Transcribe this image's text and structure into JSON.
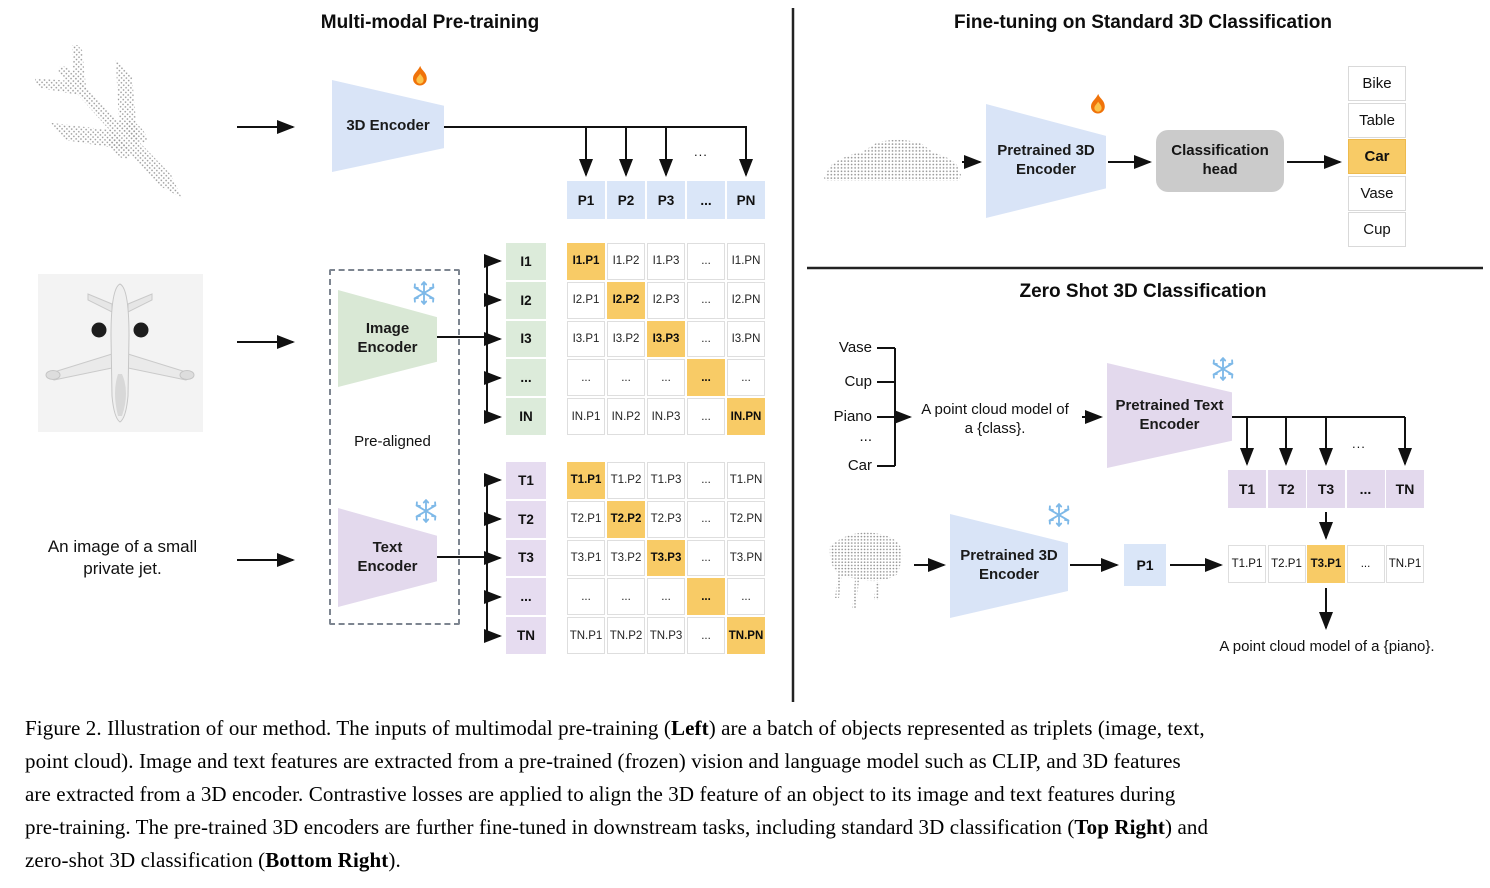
{
  "colors": {
    "encoder_blue": "#D9E4F7",
    "encoder_green": "#D9E8D5",
    "encoder_purple": "#E3D9ED",
    "highlight_orange": "#F8CB66",
    "head_gray": "#CBCBCB"
  },
  "icons": {
    "trainable": "fire-icon",
    "frozen": "snowflake-icon"
  },
  "panels": {
    "pretraining": {
      "title": "Multi-modal Pre-training",
      "encoder_3d": {
        "label": "3D Encoder",
        "icon": "fire-icon"
      },
      "drops_ellipsis": "...",
      "p_row": [
        "P1",
        "P2",
        "P3",
        "...",
        "PN"
      ],
      "image_encoder": {
        "label": "Image Encoder",
        "icon": "snowflake-icon"
      },
      "text_encoder": {
        "label": "Text Encoder",
        "icon": "snowflake-icon"
      },
      "prealigned_label": "Pre-aligned",
      "image_caption": {
        "line1": "An image of a small",
        "line2": "private jet."
      },
      "i_labels": [
        "I1",
        "I2",
        "I3",
        "...",
        "IN"
      ],
      "i_matrix": [
        [
          {
            "t": "I1.P1",
            "hl": true
          },
          {
            "t": "I1.P2"
          },
          {
            "t": "I1.P3"
          },
          {
            "t": "..."
          },
          {
            "t": "I1.PN"
          }
        ],
        [
          {
            "t": "I2.P1"
          },
          {
            "t": "I2.P2",
            "hl": true
          },
          {
            "t": "I2.P3"
          },
          {
            "t": "..."
          },
          {
            "t": "I2.PN"
          }
        ],
        [
          {
            "t": "I3.P1"
          },
          {
            "t": "I3.P2"
          },
          {
            "t": "I3.P3",
            "hl": true
          },
          {
            "t": "..."
          },
          {
            "t": "I3.PN"
          }
        ],
        [
          {
            "t": "..."
          },
          {
            "t": "..."
          },
          {
            "t": "..."
          },
          {
            "t": "...",
            "hl": true
          },
          {
            "t": "..."
          }
        ],
        [
          {
            "t": "IN.P1"
          },
          {
            "t": "IN.P2"
          },
          {
            "t": "IN.P3"
          },
          {
            "t": "..."
          },
          {
            "t": "IN.PN",
            "hl": true
          }
        ]
      ],
      "t_labels": [
        "T1",
        "T2",
        "T3",
        "...",
        "TN"
      ],
      "t_matrix": [
        [
          {
            "t": "T1.P1",
            "hl": true
          },
          {
            "t": "T1.P2"
          },
          {
            "t": "T1.P3"
          },
          {
            "t": "..."
          },
          {
            "t": "T1.PN"
          }
        ],
        [
          {
            "t": "T2.P1"
          },
          {
            "t": "T2.P2",
            "hl": true
          },
          {
            "t": "T2.P3"
          },
          {
            "t": "..."
          },
          {
            "t": "T2.PN"
          }
        ],
        [
          {
            "t": "T3.P1"
          },
          {
            "t": "T3.P2"
          },
          {
            "t": "T3.P3",
            "hl": true
          },
          {
            "t": "..."
          },
          {
            "t": "T3.PN"
          }
        ],
        [
          {
            "t": "..."
          },
          {
            "t": "..."
          },
          {
            "t": "..."
          },
          {
            "t": "...",
            "hl": true
          },
          {
            "t": "..."
          }
        ],
        [
          {
            "t": "TN.P1"
          },
          {
            "t": "TN.P2"
          },
          {
            "t": "TN.P3"
          },
          {
            "t": "..."
          },
          {
            "t": "TN.PN",
            "hl": true
          }
        ]
      ]
    },
    "finetune": {
      "title": "Fine-tuning on Standard 3D Classification",
      "encoder": {
        "label": "Pretrained 3D Encoder",
        "icon": "fire-icon"
      },
      "head": {
        "label": "Classification head"
      },
      "classes": [
        {
          "t": "Bike"
        },
        {
          "t": "Table"
        },
        {
          "t": "Car",
          "hl": true
        },
        {
          "t": "Vase"
        },
        {
          "t": "Cup"
        }
      ]
    },
    "zero_shot": {
      "title": "Zero Shot 3D Classification",
      "class_prompts": [
        "Vase",
        "Cup",
        "Piano",
        "...",
        "Car"
      ],
      "prompt": {
        "line1": "A point cloud model of",
        "line2": "a {class}."
      },
      "text_encoder": {
        "label": "Pretrained Text Encoder",
        "icon": "snowflake-icon"
      },
      "drops_ellipsis": "...",
      "t_row": [
        "T1",
        "T2",
        "T3",
        "...",
        "TN"
      ],
      "encoder_3d": {
        "label": "Pretrained 3D Encoder",
        "icon": "snowflake-icon"
      },
      "p1_label": "P1",
      "result_row": [
        {
          "t": "T1.P1"
        },
        {
          "t": "T2.P1"
        },
        {
          "t": "T3.P1",
          "hl": true
        },
        {
          "t": "..."
        },
        {
          "t": "TN.P1"
        }
      ],
      "result_caption": "A point cloud model of a {piano}."
    }
  },
  "caption": {
    "lines": [
      [
        {
          "t": "Figure 2. Illustration of our method. The inputs of multimodal pre-training ("
        },
        {
          "t": "Left",
          "b": true
        },
        {
          "t": ") are a batch of objects represented as triplets (image, text,"
        }
      ],
      [
        {
          "t": "point cloud). Image and text features are extracted from a pre-trained (frozen) vision and language model such as CLIP, and 3D features"
        }
      ],
      [
        {
          "t": "are extracted from a 3D encoder. Contrastive losses are applied to align the 3D feature of an object to its image and text features during"
        }
      ],
      [
        {
          "t": "pre-training. The pre-trained 3D encoders are further fine-tuned in downstream tasks, including standard 3D classification ("
        },
        {
          "t": "Top Right",
          "b": true
        },
        {
          "t": ") and"
        }
      ],
      [
        {
          "t": "zero-shot 3D classification ("
        },
        {
          "t": "Bottom Right",
          "b": true
        },
        {
          "t": ")."
        }
      ]
    ]
  }
}
